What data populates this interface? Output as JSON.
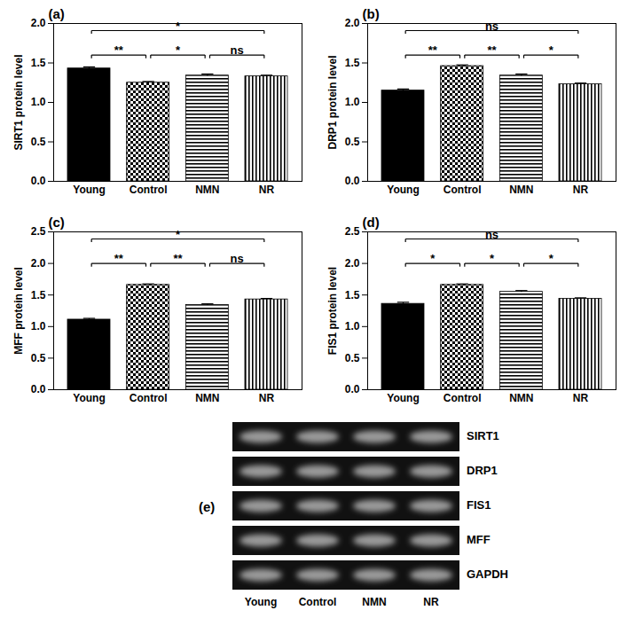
{
  "chart_data": [
    {
      "type": "bar",
      "title": "(a)",
      "y_label": "SIRT1 protein level",
      "categories": [
        "Young",
        "Control",
        "NMN",
        "NR"
      ],
      "values": [
        1.43,
        1.25,
        1.34,
        1.33
      ],
      "errors": [
        0.02,
        0.015,
        0.02,
        0.015
      ],
      "color": "#000000",
      "ylim": [
        0,
        2.0
      ],
      "yticks": [
        {
          "value": 0,
          "label": "0.0"
        },
        {
          "value": 0.5,
          "label": "0.5"
        },
        {
          "value": 1.0,
          "label": "1.0"
        },
        {
          "value": 1.5,
          "label": "1.5"
        },
        {
          "value": 2.0,
          "label": "2.0"
        }
      ],
      "annotations": [
        {
          "from": "Young",
          "to": "Control",
          "text": "**"
        },
        {
          "from": "Control",
          "to": "NMN",
          "text": "*"
        },
        {
          "from": "NMN",
          "to": "NR",
          "text": "ns"
        },
        {
          "from": "Young",
          "to": "NR",
          "text": "*"
        }
      ]
    },
    {
      "type": "bar",
      "title": "(b)",
      "y_label": "DRP1 protein level",
      "categories": [
        "Young",
        "Control",
        "NMN",
        "NR"
      ],
      "values": [
        1.15,
        1.46,
        1.34,
        1.23
      ],
      "errors": [
        0.02,
        0.015,
        0.02,
        0.015
      ],
      "color": "#000000",
      "ylim": [
        0,
        2.0
      ],
      "yticks": [
        {
          "value": 0,
          "label": "0.0"
        },
        {
          "value": 0.5,
          "label": "0.5"
        },
        {
          "value": 1.0,
          "label": "1.0"
        },
        {
          "value": 1.5,
          "label": "1.5"
        },
        {
          "value": 2.0,
          "label": "2.0"
        }
      ],
      "annotations": [
        {
          "from": "Young",
          "to": "Control",
          "text": "**"
        },
        {
          "from": "Control",
          "to": "NMN",
          "text": "**"
        },
        {
          "from": "NMN",
          "to": "NR",
          "text": "*"
        },
        {
          "from": "Young",
          "to": "NR",
          "text": "ns"
        }
      ]
    },
    {
      "type": "bar",
      "title": "(c)",
      "y_label": "MFF protein level",
      "categories": [
        "Young",
        "Control",
        "NMN",
        "NR"
      ],
      "values": [
        1.11,
        1.66,
        1.34,
        1.43
      ],
      "errors": [
        0.02,
        0.015,
        0.02,
        0.015
      ],
      "color": "#000000",
      "ylim": [
        0,
        2.5
      ],
      "yticks": [
        {
          "value": 0,
          "label": "0.0"
        },
        {
          "value": 0.5,
          "label": "0.5"
        },
        {
          "value": 1.0,
          "label": "1.0"
        },
        {
          "value": 1.5,
          "label": "1.5"
        },
        {
          "value": 2.0,
          "label": "2.0"
        },
        {
          "value": 2.5,
          "label": "2.5"
        }
      ],
      "annotations": [
        {
          "from": "Young",
          "to": "Control",
          "text": "**"
        },
        {
          "from": "Control",
          "to": "NMN",
          "text": "**"
        },
        {
          "from": "NMN",
          "to": "NR",
          "text": "ns"
        },
        {
          "from": "Young",
          "to": "NR",
          "text": "*"
        }
      ]
    },
    {
      "type": "bar",
      "title": "(d)",
      "y_label": "FIS1 protein level",
      "categories": [
        "Young",
        "Control",
        "NMN",
        "NR"
      ],
      "values": [
        1.36,
        1.66,
        1.55,
        1.44
      ],
      "errors": [
        0.025,
        0.015,
        0.02,
        0.015
      ],
      "color": "#000000",
      "ylim": [
        0,
        2.5
      ],
      "yticks": [
        {
          "value": 0,
          "label": "0.0"
        },
        {
          "value": 0.5,
          "label": "0.5"
        },
        {
          "value": 1.0,
          "label": "1.0"
        },
        {
          "value": 1.5,
          "label": "1.5"
        },
        {
          "value": 2.0,
          "label": "2.0"
        },
        {
          "value": 2.5,
          "label": "2.5"
        }
      ],
      "annotations": [
        {
          "from": "Young",
          "to": "Control",
          "text": "*"
        },
        {
          "from": "Control",
          "to": "NMN",
          "text": "*"
        },
        {
          "from": "NMN",
          "to": "NR",
          "text": "*"
        },
        {
          "from": "Young",
          "to": "NR",
          "text": "ns"
        }
      ]
    }
  ],
  "blot": {
    "title": "(e)",
    "rows": [
      "SIRT1",
      "DRP1",
      "FIS1",
      "MFF",
      "GAPDH"
    ],
    "lanes": [
      "Young",
      "Control",
      "NMN",
      "NR"
    ]
  }
}
